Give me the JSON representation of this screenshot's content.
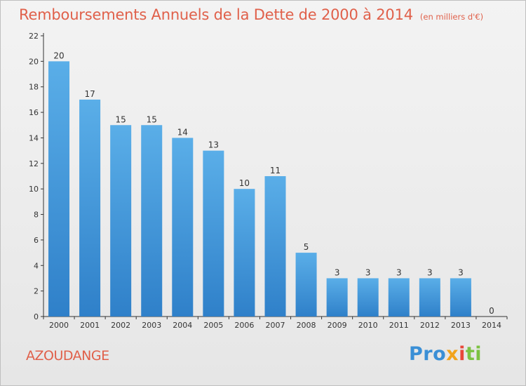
{
  "title": "Remboursements Annuels de la Dette de 2000 à 2014",
  "unit": "(en milliers d'€)",
  "commune": "AZOUDANGE",
  "logo": {
    "p1": "Pro",
    "p2": "x",
    "p3": "i",
    "p4": "ti"
  },
  "colors": {
    "accent": "#e0604a",
    "bar_light": "#5aaee8",
    "bar_dark": "#2f80c9",
    "axis": "#333333"
  },
  "chart_data": {
    "type": "bar",
    "categories": [
      "2000",
      "2001",
      "2002",
      "2003",
      "2004",
      "2005",
      "2006",
      "2007",
      "2008",
      "2009",
      "2010",
      "2011",
      "2012",
      "2013",
      "2014"
    ],
    "values": [
      20,
      17,
      15,
      15,
      14,
      13,
      10,
      11,
      5,
      3,
      3,
      3,
      3,
      3,
      0
    ],
    "ylim": [
      0,
      22
    ],
    "yticks": [
      0,
      2,
      4,
      6,
      8,
      10,
      12,
      14,
      16,
      18,
      20,
      22
    ],
    "grid": false,
    "legend": "none"
  }
}
